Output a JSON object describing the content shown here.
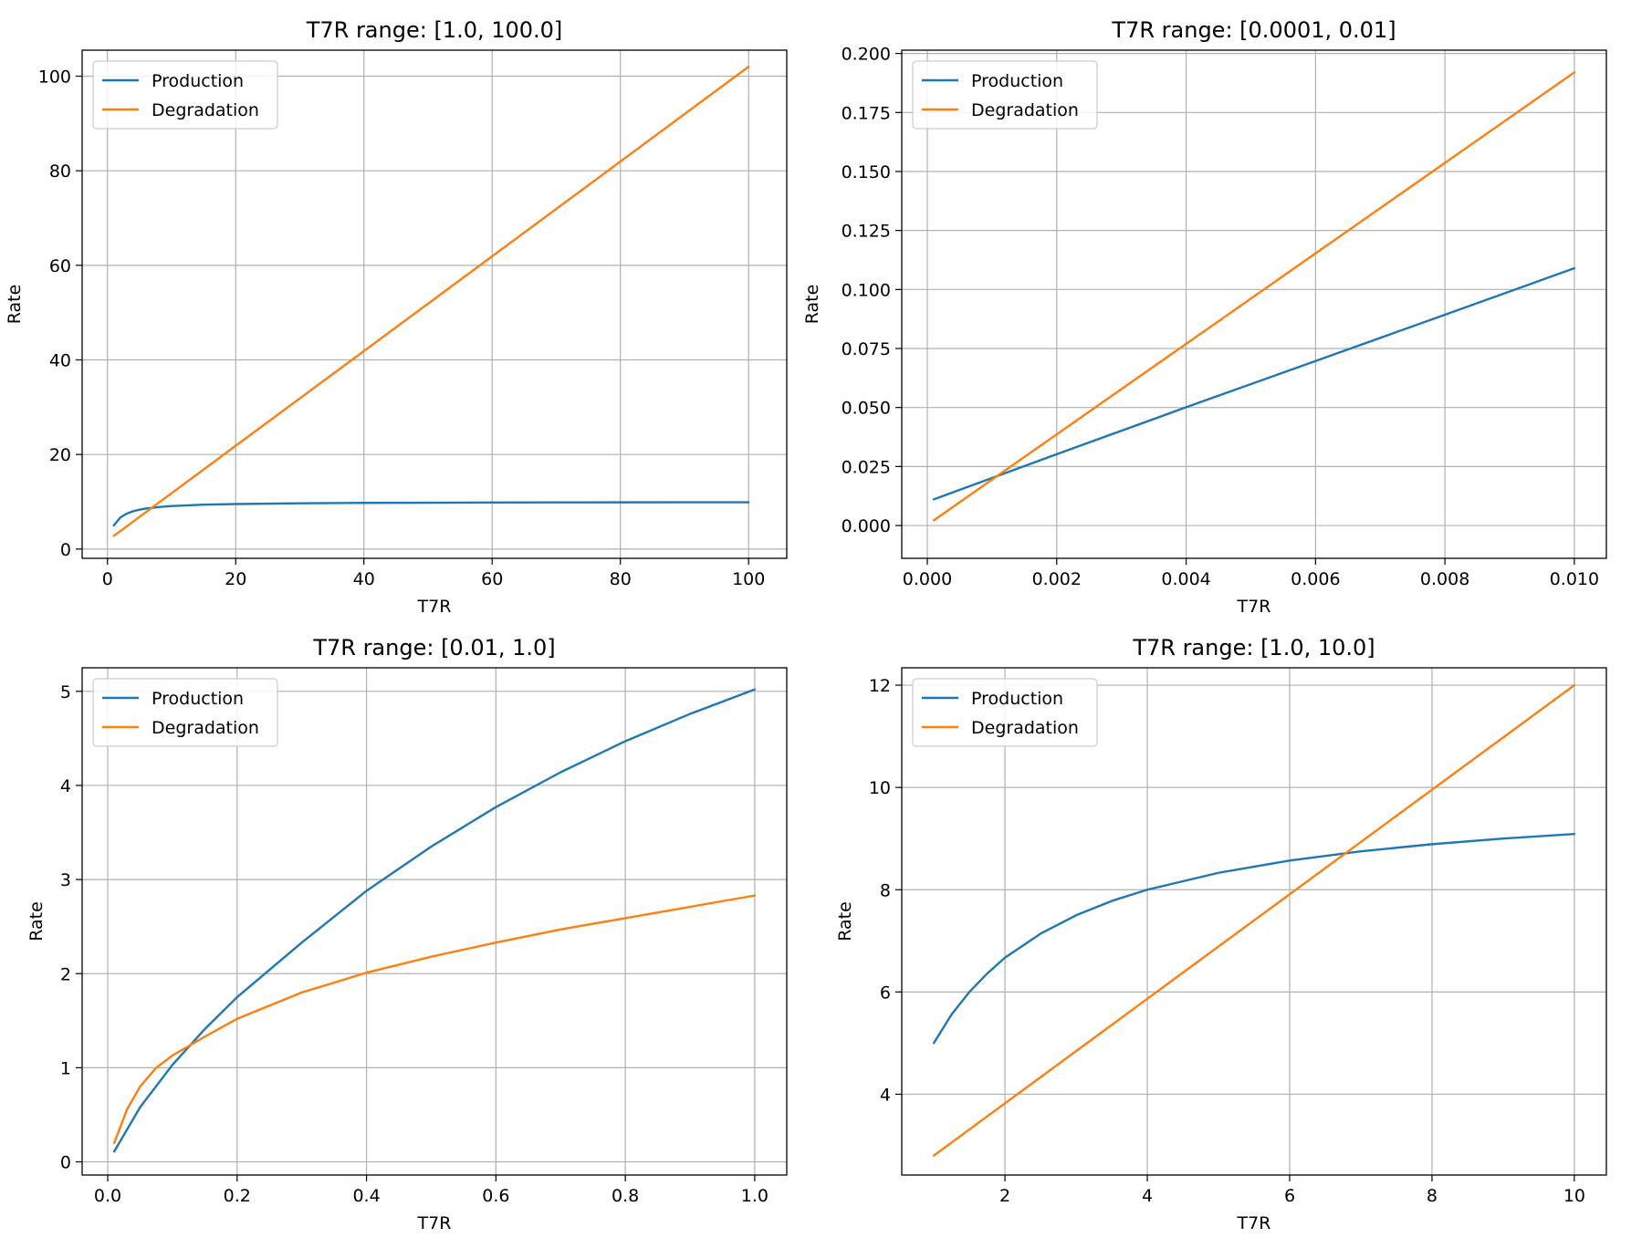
{
  "chart_data": [
    {
      "type": "line",
      "title": "T7R range: [1.0, 100.0]",
      "xlabel": "T7R",
      "ylabel": "Rate",
      "xlim": [
        -3.95,
        105.95
      ],
      "ylim": [
        -1.96,
        105.5
      ],
      "xticks": [
        0,
        20,
        40,
        60,
        80,
        100
      ],
      "yticks": [
        0,
        20,
        40,
        60,
        80,
        100
      ],
      "xtick_labels": [
        "0",
        "20",
        "40",
        "60",
        "80",
        "100"
      ],
      "ytick_labels": [
        "0",
        "20",
        "40",
        "60",
        "80",
        "100"
      ],
      "grid": true,
      "legend": "upper-left",
      "series": [
        {
          "name": "Production",
          "color": "#1f77b4",
          "x": [
            1,
            2,
            3,
            4,
            5,
            6,
            8,
            10,
            15,
            20,
            30,
            40,
            50,
            60,
            70,
            80,
            90,
            100
          ],
          "y": [
            5.0,
            6.67,
            7.5,
            8.0,
            8.33,
            8.57,
            8.89,
            9.09,
            9.38,
            9.52,
            9.68,
            9.76,
            9.8,
            9.84,
            9.86,
            9.88,
            9.89,
            9.9
          ]
        },
        {
          "name": "Degradation",
          "color": "#ff7f0e",
          "x": [
            1,
            100
          ],
          "y": [
            2.8,
            102.0
          ]
        }
      ]
    },
    {
      "type": "line",
      "title": "T7R range: [0.0001, 0.01]",
      "xlabel": "T7R",
      "ylabel": "Rate",
      "xlim": [
        -0.000395,
        0.010495
      ],
      "ylim": [
        -0.0139,
        0.2014
      ],
      "xticks": [
        0.0,
        0.002,
        0.004,
        0.006,
        0.008,
        0.01
      ],
      "yticks": [
        0.0,
        0.025,
        0.05,
        0.075,
        0.1,
        0.125,
        0.15,
        0.175,
        0.2
      ],
      "xtick_labels": [
        "0.000",
        "0.002",
        "0.004",
        "0.006",
        "0.008",
        "0.010"
      ],
      "ytick_labels": [
        "0.000",
        "0.025",
        "0.050",
        "0.075",
        "0.100",
        "0.125",
        "0.150",
        "0.175",
        "0.200"
      ],
      "grid": true,
      "legend": "upper-left",
      "series": [
        {
          "name": "Production",
          "color": "#1f77b4",
          "x": [
            0.0001,
            0.002,
            0.004,
            0.006,
            0.008,
            0.01
          ],
          "y": [
            0.0111,
            0.0302,
            0.0501,
            0.0697,
            0.0893,
            0.109
          ]
        },
        {
          "name": "Degradation",
          "color": "#ff7f0e",
          "x": [
            0.0001,
            0.01
          ],
          "y": [
            0.0022,
            0.192
          ]
        }
      ]
    },
    {
      "type": "line",
      "title": "T7R range: [0.01, 1.0]",
      "xlabel": "T7R",
      "ylabel": "Rate",
      "xlim": [
        -0.0395,
        1.0495
      ],
      "ylim": [
        -0.14,
        5.25
      ],
      "xticks": [
        0.0,
        0.2,
        0.4,
        0.6,
        0.8,
        1.0
      ],
      "yticks": [
        0,
        1,
        2,
        3,
        4,
        5
      ],
      "xtick_labels": [
        "0.0",
        "0.2",
        "0.4",
        "0.6",
        "0.8",
        "1.0"
      ],
      "ytick_labels": [
        "0",
        "1",
        "2",
        "3",
        "4",
        "5"
      ],
      "grid": true,
      "legend": "upper-left",
      "series": [
        {
          "name": "Production",
          "color": "#1f77b4",
          "x": [
            0.01,
            0.05,
            0.1,
            0.15,
            0.2,
            0.3,
            0.4,
            0.5,
            0.6,
            0.7,
            0.8,
            0.9,
            1.0
          ],
          "y": [
            0.11,
            0.58,
            1.03,
            1.41,
            1.75,
            2.33,
            2.88,
            3.35,
            3.77,
            4.14,
            4.47,
            4.76,
            5.02
          ]
        },
        {
          "name": "Degradation",
          "color": "#ff7f0e",
          "x": [
            0.01,
            0.03,
            0.05,
            0.075,
            0.1,
            0.15,
            0.2,
            0.3,
            0.4,
            0.5,
            0.6,
            0.7,
            0.8,
            0.9,
            1.0
          ],
          "y": [
            0.2,
            0.56,
            0.8,
            1.0,
            1.13,
            1.33,
            1.52,
            1.8,
            2.01,
            2.18,
            2.33,
            2.47,
            2.59,
            2.71,
            2.83
          ]
        }
      ]
    },
    {
      "type": "line",
      "title": "T7R range: [1.0, 10.0]",
      "xlabel": "T7R",
      "ylabel": "Rate",
      "xlim": [
        0.55,
        10.45
      ],
      "ylim": [
        2.42,
        12.34
      ],
      "xticks": [
        2,
        4,
        6,
        8,
        10
      ],
      "yticks": [
        4,
        6,
        8,
        10,
        12
      ],
      "xtick_labels": [
        "2",
        "4",
        "6",
        "8",
        "10"
      ],
      "ytick_labels": [
        "4",
        "6",
        "8",
        "10",
        "12"
      ],
      "grid": true,
      "legend": "upper-left",
      "series": [
        {
          "name": "Production",
          "color": "#1f77b4",
          "x": [
            1.0,
            1.25,
            1.5,
            1.75,
            2.0,
            2.5,
            3.0,
            3.5,
            4.0,
            5.0,
            6.0,
            7.0,
            8.0,
            9.0,
            10.0
          ],
          "y": [
            5.0,
            5.56,
            6.0,
            6.36,
            6.67,
            7.14,
            7.5,
            7.78,
            8.0,
            8.33,
            8.57,
            8.75,
            8.89,
            9.0,
            9.09
          ]
        },
        {
          "name": "Degradation",
          "color": "#ff7f0e",
          "x": [
            1.0,
            10.0
          ],
          "y": [
            2.8,
            12.0
          ]
        }
      ]
    }
  ]
}
